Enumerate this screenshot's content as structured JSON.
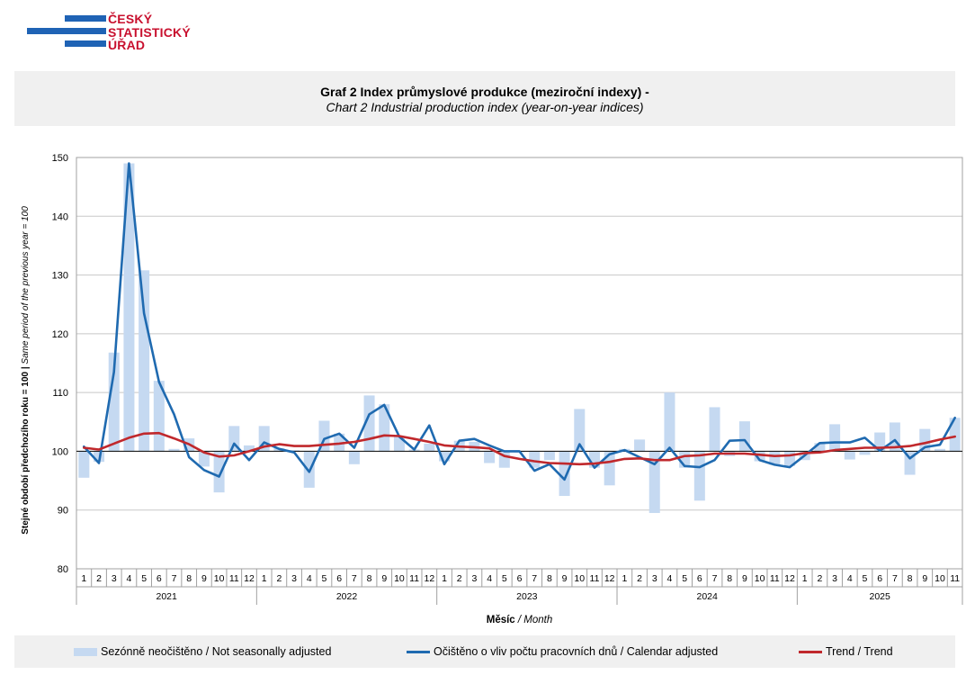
{
  "logo": {
    "lines": [
      "ČESKÝ",
      "STATISTICKÝ",
      "ÚŘAD"
    ]
  },
  "title": {
    "main": "Graf 2 Index průmyslové produkce (meziroční indexy) -",
    "sub": "Chart 2 Industrial production index (year-on-year indices)"
  },
  "colors": {
    "bar": "#c5d9f1",
    "calendar": "#1f6ab0",
    "trend": "#c0282c",
    "grid": "#c8c8c8"
  },
  "chart_data": {
    "type": "bar",
    "ylabel_bold": "Stejné období předchozího roku = 100 | ",
    "ylabel_italic": "Same period of  the previous year = 100",
    "xlabel_bold": "Měsíc",
    "xlabel_italic": " / Month",
    "ylim": [
      80,
      150
    ],
    "yticks": [
      80,
      90,
      100,
      110,
      120,
      130,
      140,
      150
    ],
    "baseline": 100,
    "grid": true,
    "legend_position": "bottom",
    "years": [
      {
        "label": "2021",
        "months": 12
      },
      {
        "label": "2022",
        "months": 12
      },
      {
        "label": "2023",
        "months": 12
      },
      {
        "label": "2024",
        "months": 12
      },
      {
        "label": "2025",
        "months": 11
      }
    ],
    "months": [
      "1",
      "2",
      "3",
      "4",
      "5",
      "6",
      "7",
      "8",
      "9",
      "10",
      "11",
      "12",
      "1",
      "2",
      "3",
      "4",
      "5",
      "6",
      "7",
      "8",
      "9",
      "10",
      "11",
      "12",
      "1",
      "2",
      "3",
      "4",
      "5",
      "6",
      "7",
      "8",
      "9",
      "10",
      "11",
      "12",
      "1",
      "2",
      "3",
      "4",
      "5",
      "6",
      "7",
      "8",
      "9",
      "10",
      "11",
      "12",
      "1",
      "2",
      "3",
      "4",
      "5",
      "6",
      "7",
      "8",
      "9",
      "10",
      "11"
    ],
    "series": [
      {
        "name": "Sezónně neočištěno / Not seasonally adjusted",
        "kind": "bar",
        "values": [
          95.5,
          98.2,
          116.8,
          149.0,
          130.8,
          112.0,
          100.4,
          102.2,
          97.4,
          93.0,
          104.3,
          101.0,
          104.3,
          100.5,
          100.2,
          93.8,
          105.2,
          103.0,
          97.8,
          109.5,
          108.0,
          102.5,
          100.3,
          101.3,
          98.3,
          101.8,
          101.6,
          98.0,
          97.2,
          99.8,
          97.2,
          98.5,
          92.4,
          107.2,
          97.2,
          94.2,
          100.4,
          102.0,
          89.5,
          110.0,
          97.2,
          91.6,
          107.5,
          99.2,
          105.1,
          98.3,
          97.7,
          97.5,
          98.5,
          101.4,
          104.6,
          98.6,
          99.4,
          103.2,
          104.9,
          96.0,
          103.8,
          100.4,
          105.7
        ]
      },
      {
        "name": "Očištěno o vliv počtu pracovních dnů / Calendar adjusted",
        "kind": "line",
        "values": [
          100.8,
          98.0,
          113.5,
          149.0,
          123.5,
          111.8,
          106.3,
          99.0,
          96.8,
          95.7,
          101.3,
          98.5,
          101.5,
          100.4,
          99.8,
          96.5,
          102.1,
          103.0,
          100.6,
          106.3,
          107.9,
          102.5,
          100.3,
          104.4,
          97.8,
          101.8,
          102.1,
          101.0,
          100.0,
          100.0,
          96.7,
          97.8,
          95.2,
          101.2,
          97.2,
          99.5,
          100.2,
          99.0,
          97.8,
          100.6,
          97.5,
          97.3,
          98.5,
          101.8,
          101.9,
          98.5,
          97.7,
          97.3,
          99.3,
          101.4,
          101.5,
          101.5,
          102.3,
          100.1,
          101.9,
          98.8,
          100.7,
          101.1,
          105.7
        ]
      },
      {
        "name": "Trend / Trend",
        "kind": "line",
        "values": [
          100.6,
          100.3,
          101.3,
          102.3,
          103.0,
          103.1,
          102.2,
          101.2,
          99.8,
          99.1,
          99.3,
          100.0,
          100.8,
          101.2,
          100.9,
          100.9,
          101.1,
          101.3,
          101.6,
          102.1,
          102.7,
          102.6,
          102.1,
          101.6,
          101.0,
          100.8,
          100.7,
          100.5,
          99.2,
          98.7,
          98.3,
          98.0,
          97.9,
          97.8,
          97.9,
          98.2,
          98.7,
          98.8,
          98.5,
          98.5,
          99.2,
          99.3,
          99.6,
          99.6,
          99.6,
          99.4,
          99.2,
          99.3,
          99.7,
          99.8,
          100.2,
          100.4,
          100.6,
          100.6,
          100.7,
          100.9,
          101.4,
          102.0,
          102.5
        ]
      }
    ]
  },
  "legend": {
    "bar": "Sezónně neočištěno / Not seasonally adjusted",
    "calendar": "Očištěno o vliv počtu pracovních dnů / Calendar adjusted",
    "trend": "Trend / Trend"
  }
}
